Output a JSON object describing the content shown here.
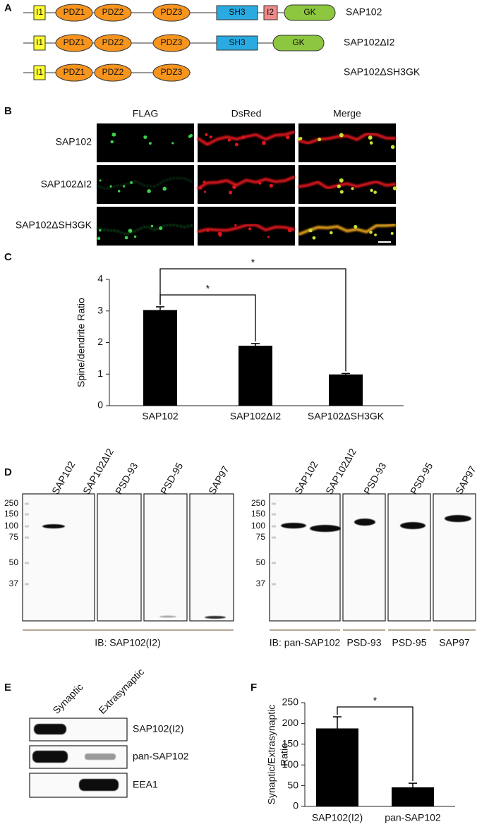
{
  "panels": {
    "A": {
      "label": "A",
      "constructs": [
        {
          "name": "SAP102",
          "domains": [
            "I1",
            "PDZ1",
            "PDZ2",
            "PDZ3",
            "SH3",
            "I2",
            "GK"
          ]
        },
        {
          "name": "SAP102ΔI2",
          "domains": [
            "I1",
            "PDZ1",
            "PDZ2",
            "PDZ3",
            "SH3",
            "GK"
          ]
        },
        {
          "name": "SAP102ΔSH3GK",
          "domains": [
            "I1",
            "PDZ1",
            "PDZ2",
            "PDZ3"
          ]
        }
      ]
    },
    "B": {
      "label": "B",
      "columns": [
        "FLAG",
        "DsRed",
        "Merge"
      ],
      "rows": [
        "SAP102",
        "SAP102ΔI2",
        "SAP102ΔSH3GK"
      ]
    },
    "D": {
      "label": "D",
      "left_lanes": [
        "SAP102",
        "SAP102ΔI2",
        "PSD-93",
        "PSD-95",
        "SAP97"
      ],
      "right_lanes": [
        "SAP102",
        "SAP102ΔI2",
        "PSD-93",
        "PSD-95",
        "SAP97"
      ],
      "markers": [
        "250",
        "150",
        "100",
        "75",
        "50",
        "37"
      ],
      "left_ib": "IB: SAP102(I2)",
      "right_ib": [
        "IB: pan-SAP102",
        "PSD-93",
        "PSD-95",
        "SAP97"
      ]
    },
    "E": {
      "label": "E",
      "columns": [
        "Synaptic",
        "Extrasynaptic"
      ],
      "rows": [
        "SAP102(I2)",
        "pan-SAP102",
        "EEA1"
      ]
    }
  },
  "chart_data": [
    {
      "type": "bar",
      "panel": "C",
      "ylabel": [
        "Spine/dendrite Ratio"
      ],
      "categories": [
        "SAP102",
        "SAP102ΔI2",
        "SAP102ΔSH3GK"
      ],
      "values": [
        3.03,
        1.9,
        0.99
      ],
      "errors": [
        0.1,
        0.07,
        0.03
      ],
      "color": "#000000",
      "ylim": [
        0,
        4
      ],
      "yticks": [
        0,
        1,
        2,
        3,
        4
      ],
      "annotations": [
        "*",
        "*"
      ]
    },
    {
      "type": "bar",
      "panel": "F",
      "ylabel": [
        "Synaptic/Extrasynaptic",
        "Ratio"
      ],
      "categories": [
        "SAP102(I2)",
        "pan-SAP102"
      ],
      "values": [
        188,
        46
      ],
      "errors": [
        28,
        10
      ],
      "color": "#000000",
      "ylim": [
        0,
        250
      ],
      "yticks": [
        0,
        50,
        100,
        150,
        200,
        250
      ],
      "annotations": [
        "*"
      ]
    }
  ]
}
